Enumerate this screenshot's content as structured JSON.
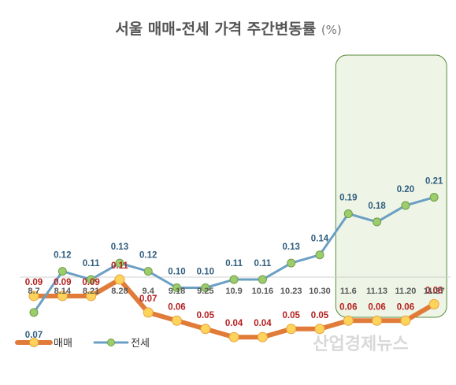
{
  "chart_data": {
    "type": "line",
    "title": "서울 매매-전세 가격 주간변동률",
    "title_unit": "(%)",
    "categories": [
      "8.7",
      "8.14",
      "8.21",
      "8.28",
      "9.4",
      "9.18",
      "9.25",
      "10.9",
      "10.16",
      "10.23",
      "10.30",
      "11.6",
      "11.13",
      "11.20",
      "11.27"
    ],
    "series": [
      {
        "name": "매매",
        "color": "#e07b39",
        "marker_color": "#fdd35c",
        "values": [
          0.09,
          0.09,
          0.09,
          0.11,
          0.07,
          0.06,
          0.05,
          0.04,
          0.04,
          0.05,
          0.05,
          0.06,
          0.06,
          0.06,
          0.08
        ]
      },
      {
        "name": "전세",
        "color": "#6b9fc4",
        "marker_color": "#9ccc6b",
        "values": [
          0.07,
          0.12,
          0.11,
          0.13,
          0.12,
          0.1,
          0.1,
          0.11,
          0.11,
          0.13,
          0.14,
          0.19,
          0.18,
          0.2,
          0.21
        ]
      }
    ],
    "highlight": {
      "from": "11.6",
      "to": "11.27",
      "fill": "#eef5e6",
      "stroke": "#5a8a3a"
    },
    "grid": false,
    "legend_position": "bottom-left"
  },
  "watermark": "산업경제뉴스"
}
